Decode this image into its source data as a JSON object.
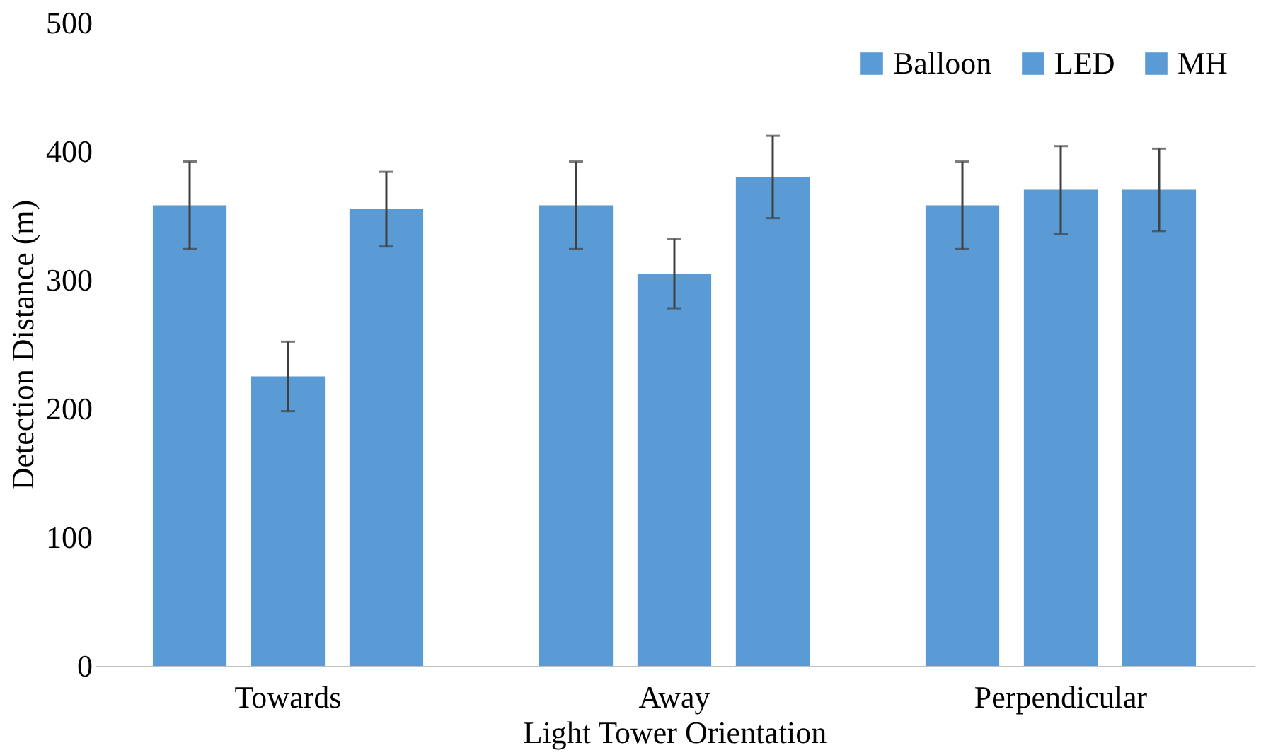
{
  "chart_data": {
    "type": "bar",
    "xlabel": "Light Tower Orientation",
    "ylabel": "Detection Distance (m)",
    "categories": [
      "Towards",
      "Away",
      "Perpendicular"
    ],
    "series": [
      {
        "name": "Balloon",
        "color": "#5b9bd5",
        "values": [
          358,
          358,
          358
        ],
        "errors": [
          34,
          34,
          34
        ]
      },
      {
        "name": "LED",
        "color": "#5b9bd5",
        "values": [
          225,
          305,
          370
        ],
        "errors": [
          27,
          27,
          34
        ]
      },
      {
        "name": "MH",
        "color": "#5b9bd5",
        "values": [
          355,
          380,
          370
        ],
        "errors": [
          29,
          32,
          32
        ]
      }
    ],
    "ylim": [
      0,
      500
    ],
    "yticks": [
      0,
      100,
      200,
      300,
      400,
      500
    ],
    "grid": false,
    "legend": "top right"
  }
}
